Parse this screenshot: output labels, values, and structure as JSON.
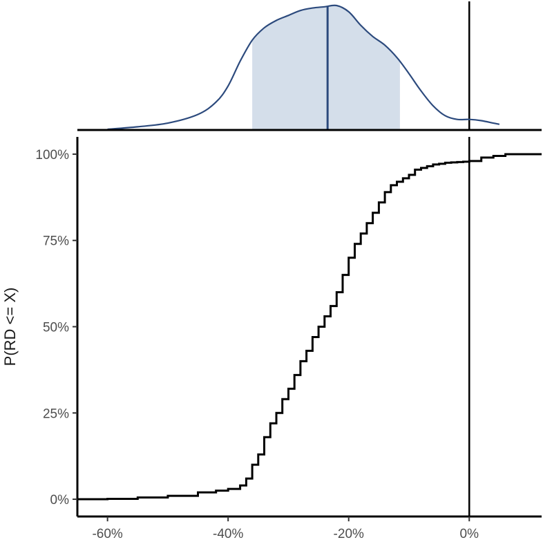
{
  "chart_data": [
    {
      "type": "area",
      "panel": "top",
      "description_role": "density",
      "x": [
        -0.6,
        -0.55,
        -0.5,
        -0.45,
        -0.42,
        -0.4,
        -0.38,
        -0.36,
        -0.34,
        -0.32,
        -0.3,
        -0.28,
        -0.26,
        -0.24,
        -0.22,
        -0.2,
        -0.18,
        -0.16,
        -0.14,
        -0.12,
        -0.1,
        -0.08,
        -0.06,
        -0.04,
        -0.02,
        0.0,
        0.02,
        0.04,
        0.05
      ],
      "density": [
        0.0,
        0.02,
        0.05,
        0.12,
        0.22,
        0.35,
        0.55,
        0.72,
        0.82,
        0.88,
        0.92,
        0.96,
        0.98,
        0.99,
        1.0,
        0.95,
        0.84,
        0.75,
        0.68,
        0.58,
        0.45,
        0.31,
        0.19,
        0.11,
        0.08,
        0.08,
        0.07,
        0.05,
        0.04
      ],
      "shaded_interval": [
        -0.36,
        -0.115
      ],
      "median": -0.235,
      "line_color": "#2c4a7d",
      "fill_color": "#d4deea"
    },
    {
      "type": "line",
      "panel": "bottom",
      "description_role": "ecdf",
      "x": [
        -0.65,
        -0.6,
        -0.55,
        -0.5,
        -0.45,
        -0.42,
        -0.4,
        -0.38,
        -0.37,
        -0.36,
        -0.35,
        -0.34,
        -0.33,
        -0.32,
        -0.31,
        -0.3,
        -0.29,
        -0.28,
        -0.27,
        -0.26,
        -0.25,
        -0.24,
        -0.23,
        -0.22,
        -0.21,
        -0.2,
        -0.19,
        -0.18,
        -0.17,
        -0.16,
        -0.15,
        -0.14,
        -0.13,
        -0.12,
        -0.11,
        -0.1,
        -0.09,
        -0.08,
        -0.07,
        -0.06,
        -0.05,
        -0.04,
        -0.03,
        -0.02,
        -0.01,
        0.0,
        0.02,
        0.04,
        0.06,
        0.08,
        0.12
      ],
      "y": [
        0.0,
        0.001,
        0.005,
        0.01,
        0.02,
        0.025,
        0.03,
        0.04,
        0.06,
        0.1,
        0.13,
        0.18,
        0.22,
        0.25,
        0.29,
        0.32,
        0.36,
        0.4,
        0.43,
        0.47,
        0.5,
        0.53,
        0.56,
        0.6,
        0.65,
        0.7,
        0.74,
        0.77,
        0.8,
        0.83,
        0.86,
        0.89,
        0.91,
        0.92,
        0.93,
        0.94,
        0.955,
        0.96,
        0.965,
        0.97,
        0.972,
        0.975,
        0.976,
        0.977,
        0.978,
        0.98,
        0.99,
        0.995,
        1.0,
        1.0,
        1.0
      ],
      "xlim": [
        -0.65,
        0.12
      ],
      "ylim": [
        -0.05,
        1.05
      ],
      "xticks": [
        -0.6,
        -0.4,
        -0.2,
        0.0
      ],
      "yticks": [
        0.0,
        0.25,
        0.5,
        0.75,
        1.0
      ],
      "xticklabels": [
        "-60%",
        "-40%",
        "-20%",
        "0%"
      ],
      "yticklabels": [
        "0%",
        "25%",
        "50%",
        "75%",
        "100%"
      ],
      "ylabel": "P(RD <= X)",
      "xlabel": "",
      "vline_x": 0.0,
      "line_color": "#000000",
      "grid": false
    }
  ]
}
